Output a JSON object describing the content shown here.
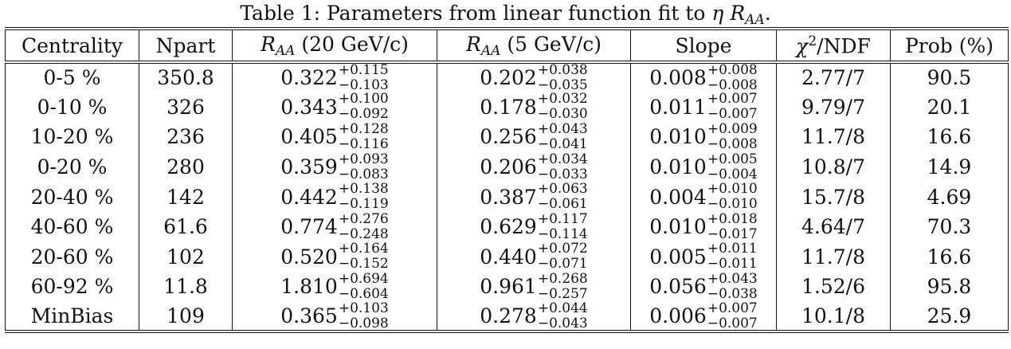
{
  "caption": {
    "prefix": "Table 1: Parameters from linear function fit to ",
    "eta": "η",
    "r": "R",
    "sub": "AA",
    "suffix": "."
  },
  "headers": {
    "centrality": "Centrality",
    "npart": "Npart",
    "raa20": {
      "r": "R",
      "sub": "AA",
      "text": " (20 GeV/c)"
    },
    "raa5": {
      "r": "R",
      "sub": "AA",
      "text": " (5 GeV/c)"
    },
    "slope": "Slope",
    "chi2": {
      "chi": "χ",
      "sup": "2",
      "text": "/NDF"
    },
    "prob": "Prob (%)"
  },
  "rows": [
    {
      "centrality": "0-5 %",
      "npart": "350.8",
      "raa20": {
        "v": "0.322",
        "up": "+0.115",
        "dn": "−0.103"
      },
      "raa5": {
        "v": "0.202",
        "up": "+0.038",
        "dn": "−0.035"
      },
      "slope": {
        "v": "0.008",
        "up": "+0.008",
        "dn": "−0.008"
      },
      "chi2": "2.77/7",
      "prob": "90.5"
    },
    {
      "centrality": "0-10 %",
      "npart": "326",
      "raa20": {
        "v": "0.343",
        "up": "+0.100",
        "dn": "−0.092"
      },
      "raa5": {
        "v": "0.178",
        "up": "+0.032",
        "dn": "−0.030"
      },
      "slope": {
        "v": "0.011",
        "up": "+0.007",
        "dn": "−0.007"
      },
      "chi2": "9.79/7",
      "prob": "20.1"
    },
    {
      "centrality": "10-20 %",
      "npart": "236",
      "raa20": {
        "v": "0.405",
        "up": "+0.128",
        "dn": "−0.116"
      },
      "raa5": {
        "v": "0.256",
        "up": "+0.043",
        "dn": "−0.041"
      },
      "slope": {
        "v": "0.010",
        "up": "+0.009",
        "dn": "−0.008"
      },
      "chi2": "11.7/8",
      "prob": "16.6"
    },
    {
      "centrality": "0-20 %",
      "npart": "280",
      "raa20": {
        "v": "0.359",
        "up": "+0.093",
        "dn": "−0.083"
      },
      "raa5": {
        "v": "0.206",
        "up": "+0.034",
        "dn": "−0.033"
      },
      "slope": {
        "v": "0.010",
        "up": "+0.005",
        "dn": "−0.004"
      },
      "chi2": "10.8/7",
      "prob": "14.9"
    },
    {
      "centrality": "20-40 %",
      "npart": "142",
      "raa20": {
        "v": "0.442",
        "up": "+0.138",
        "dn": "−0.119"
      },
      "raa5": {
        "v": "0.387",
        "up": "+0.063",
        "dn": "−0.061"
      },
      "slope": {
        "v": "0.004",
        "up": "+0.010",
        "dn": "−0.010"
      },
      "chi2": "15.7/8",
      "prob": "4.69"
    },
    {
      "centrality": "40-60 %",
      "npart": "61.6",
      "raa20": {
        "v": "0.774",
        "up": "+0.276",
        "dn": "−0.248"
      },
      "raa5": {
        "v": "0.629",
        "up": "+0.117",
        "dn": "−0.114"
      },
      "slope": {
        "v": "0.010",
        "up": "+0.018",
        "dn": "−0.017"
      },
      "chi2": "4.64/7",
      "prob": "70.3"
    },
    {
      "centrality": "20-60 %",
      "npart": "102",
      "raa20": {
        "v": "0.520",
        "up": "+0.164",
        "dn": "−0.152"
      },
      "raa5": {
        "v": "0.440",
        "up": "+0.072",
        "dn": "−0.071"
      },
      "slope": {
        "v": "0.005",
        "up": "+0.011",
        "dn": "−0.011"
      },
      "chi2": "11.7/8",
      "prob": "16.6"
    },
    {
      "centrality": "60-92 %",
      "npart": "11.8",
      "raa20": {
        "v": "1.810",
        "up": "+0.694",
        "dn": "−0.604"
      },
      "raa5": {
        "v": "0.961",
        "up": "+0.268",
        "dn": "−0.257"
      },
      "slope": {
        "v": "0.056",
        "up": "+0.043",
        "dn": "−0.038"
      },
      "chi2": "1.52/6",
      "prob": "95.8"
    },
    {
      "centrality": "MinBias",
      "npart": "109",
      "raa20": {
        "v": "0.365",
        "up": "+0.103",
        "dn": "−0.098"
      },
      "raa5": {
        "v": "0.278",
        "up": "+0.044",
        "dn": "−0.043"
      },
      "slope": {
        "v": "0.006",
        "up": "+0.007",
        "dn": "−0.007"
      },
      "chi2": "10.1/8",
      "prob": "25.9"
    }
  ]
}
